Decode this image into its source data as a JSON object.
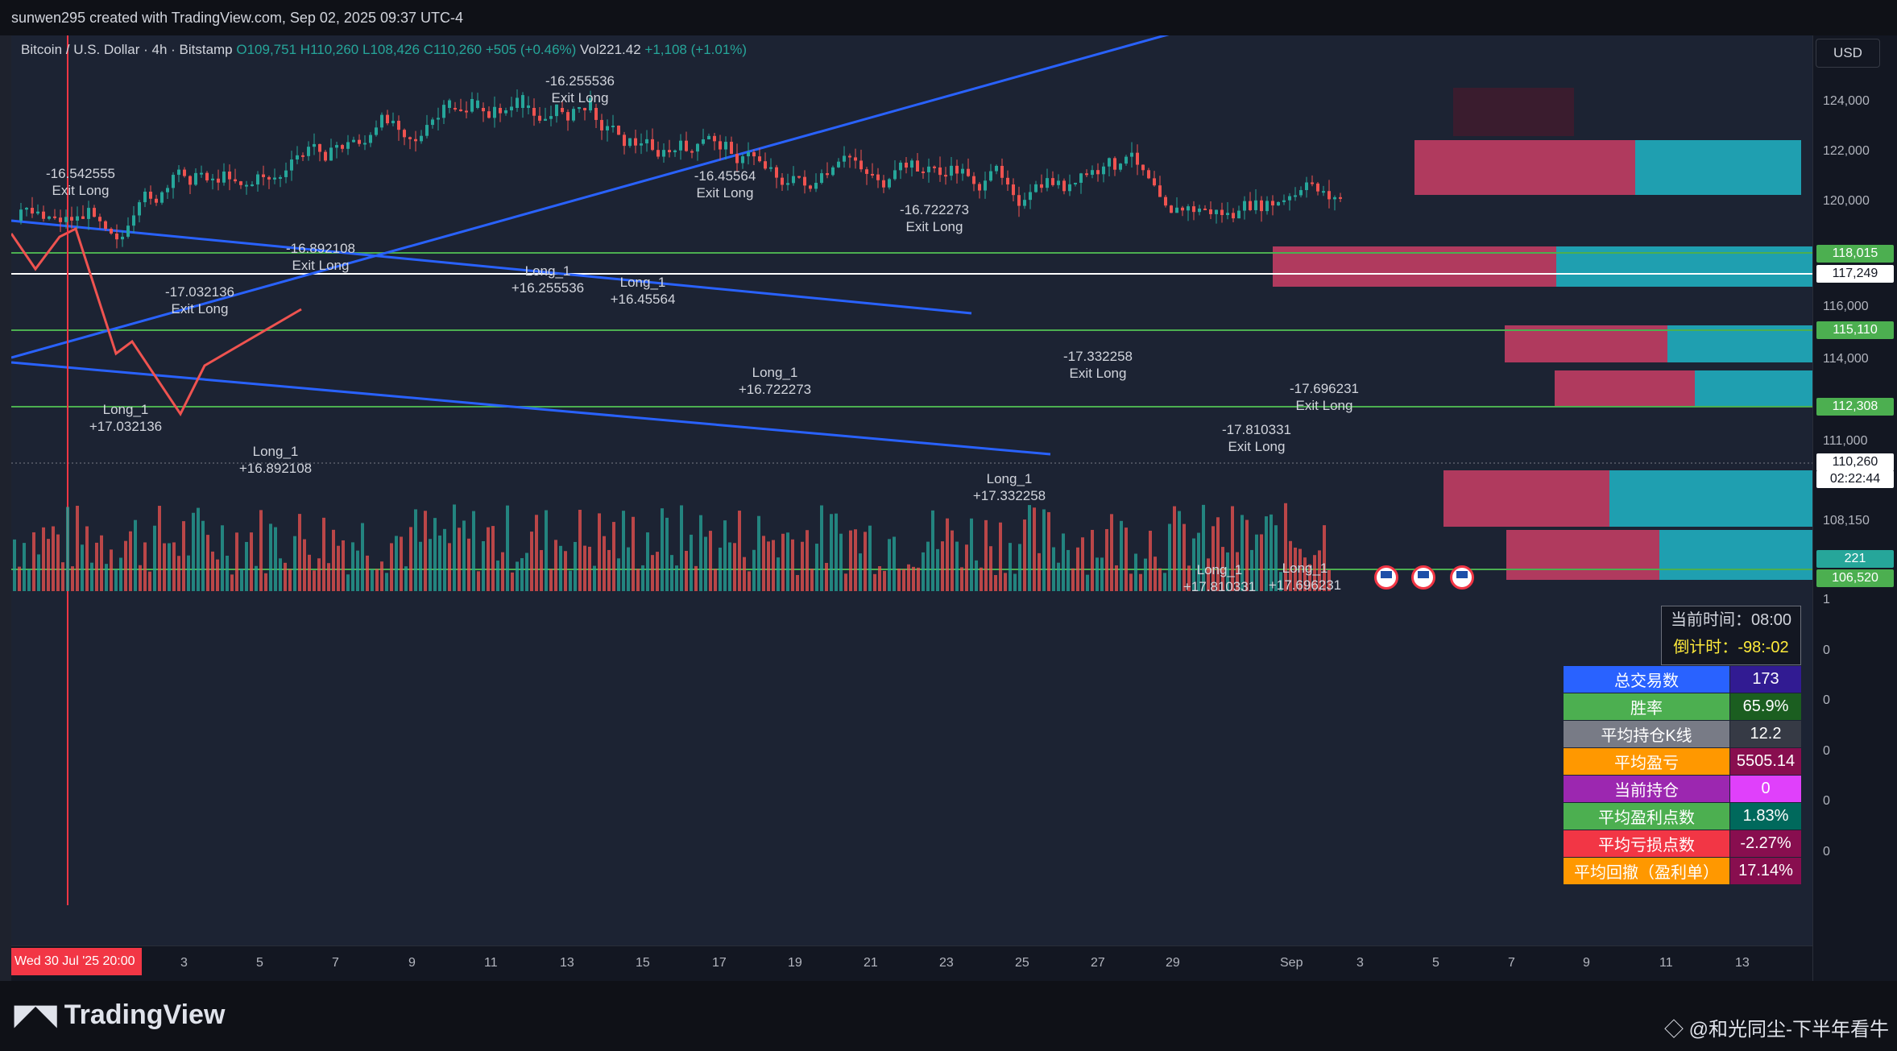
{
  "header": {
    "credit": "sunwen295 created with TradingView.com, Sep 02, 2025 09:37 UTC-4"
  },
  "legend": {
    "symbol": "Bitcoin / U.S. Dollar · 4h · Bitstamp",
    "open": "O109,751",
    "high": "H110,260",
    "low": "L108,426",
    "close": "C110,260",
    "change": "+505 (+0.46%)",
    "vol": "Vol221.42",
    "vol_change": "+1,108 (+1.01%)"
  },
  "currency": "USD",
  "price_scale": {
    "ticks": [
      "124,000",
      "122,000",
      "120,000",
      "116,000",
      "114,000",
      "111,000",
      "108,150",
      "1",
      "0",
      "0",
      "0",
      "0",
      "0"
    ],
    "labels": [
      {
        "text": "118,015",
        "bg": "#4caf50",
        "fg": "#ffffff"
      },
      {
        "text": "117,249",
        "bg": "#ffffff",
        "fg": "#131722"
      },
      {
        "text": "115,110",
        "bg": "#4caf50",
        "fg": "#ffffff"
      },
      {
        "text": "112,308",
        "bg": "#4caf50",
        "fg": "#ffffff"
      },
      {
        "text": "110,260",
        "bg": "#ffffff",
        "fg": "#131722"
      },
      {
        "text": "02:22:44",
        "bg": "#ffffff",
        "fg": "#131722"
      },
      {
        "text": "221",
        "bg": "#26a69a",
        "fg": "#ffffff"
      },
      {
        "text": "106,520",
        "bg": "#4caf50",
        "fg": "#ffffff"
      }
    ]
  },
  "time_axis": {
    "start": "Wed 30 Jul '25   20:00",
    "labels": [
      "3",
      "5",
      "7",
      "9",
      "11",
      "13",
      "15",
      "17",
      "19",
      "21",
      "23",
      "25",
      "27",
      "29",
      "Sep",
      "3",
      "5",
      "7",
      "9",
      "11",
      "13"
    ]
  },
  "annotations": [
    {
      "l1": "-16.542555",
      "l2": "Exit Long"
    },
    {
      "l1": "-16.255536",
      "l2": "Exit Long"
    },
    {
      "l1": "-16.45564",
      "l2": "Exit Long"
    },
    {
      "l1": "-16.722273",
      "l2": "Exit Long"
    },
    {
      "l1": "-16.892108",
      "l2": "Exit Long"
    },
    {
      "l1": "-17.032136",
      "l2": "Exit Long"
    },
    {
      "l1": "-17.332258",
      "l2": "Exit Long"
    },
    {
      "l1": "-17.696231",
      "l2": "Exit Long"
    },
    {
      "l1": "-17.810331",
      "l2": "Exit Long"
    },
    {
      "l1": "Long_1",
      "l2": "+16.255536"
    },
    {
      "l1": "Long_1",
      "l2": "+16.45564"
    },
    {
      "l1": "Long_1",
      "l2": "+17.032136"
    },
    {
      "l1": "Long_1",
      "l2": "+16.892108"
    },
    {
      "l1": "Long_1",
      "l2": "+16.722273"
    },
    {
      "l1": "Long_1",
      "l2": "+17.332258"
    },
    {
      "l1": "Long_1",
      "l2": "+17.810331"
    },
    {
      "l1": "Long_1",
      "l2": "+17.696231"
    }
  ],
  "clock": {
    "current_label": "当前时间：",
    "current_value": "08:00",
    "countdown_label": "倒计时：",
    "countdown_value": "-98:-02"
  },
  "stats": [
    {
      "key": "总交易数",
      "value": "173",
      "kbg": "#2962ff",
      "vbg": "#311b92"
    },
    {
      "key": "胜率",
      "value": "65.9%",
      "kbg": "#4caf50",
      "vbg": "#1b5e20"
    },
    {
      "key": "平均持仓K线",
      "value": "12.2",
      "kbg": "#787b86",
      "vbg": "#363a45"
    },
    {
      "key": "平均盈亏",
      "value": "5505.14",
      "kbg": "#ff9800",
      "vbg": "#880e4f"
    },
    {
      "key": "当前持仓",
      "value": "0",
      "kbg": "#9c27b0",
      "vbg": "#e040fb"
    },
    {
      "key": "平均盈利点数",
      "value": "1.83%",
      "kbg": "#4caf50",
      "vbg": "#00695c"
    },
    {
      "key": "平均亏损点数",
      "value": "-2.27%",
      "kbg": "#f23645",
      "vbg": "#880e4f"
    },
    {
      "key": "平均回撤（盈利单）",
      "value": "17.14%",
      "kbg": "#ff9800",
      "vbg": "#880e4f"
    }
  ],
  "footer": {
    "brand": "TradingView",
    "watermark": "@和光同尘-下半年看牛"
  },
  "colors": {
    "up": "#26a69a",
    "down": "#ef5350",
    "trend": "#2962ff",
    "level": "#4caf50"
  }
}
